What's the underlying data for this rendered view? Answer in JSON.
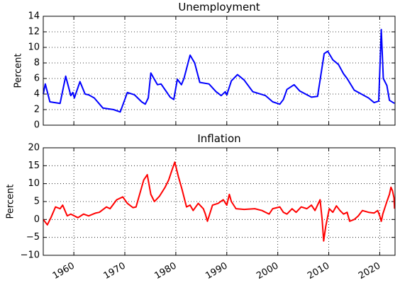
{
  "chart_data": [
    {
      "type": "line",
      "title": "Unemployment",
      "ylabel": "Percent",
      "color": "#0000ff",
      "xlim": [
        1954,
        2023
      ],
      "xticks": [
        1960,
        1970,
        1980,
        1990,
        2000,
        2010,
        2020
      ],
      "ylim": [
        0,
        14
      ],
      "yticks": [
        0,
        2,
        4,
        6,
        8,
        10,
        12,
        14
      ],
      "grid": true,
      "x": [
        1954.0,
        1954.4,
        1955.3,
        1957.3,
        1958.4,
        1959.4,
        1959.8,
        1960.1,
        1961.2,
        1962.2,
        1962.9,
        1964.0,
        1965.7,
        1967.8,
        1969.1,
        1970.5,
        1971.9,
        1973.3,
        1974.0,
        1974.6,
        1975.1,
        1976.4,
        1977.1,
        1978.9,
        1979.6,
        1980.3,
        1981.1,
        1981.6,
        1982.8,
        1983.7,
        1984.7,
        1986.5,
        1987.9,
        1988.9,
        1989.7,
        1990.0,
        1990.9,
        1992.1,
        1993.4,
        1995.1,
        1997.6,
        1999.0,
        2000.4,
        2001.1,
        2001.8,
        2003.2,
        2004.3,
        2006.6,
        2007.8,
        2008.3,
        2009.1,
        2009.8,
        2010.8,
        2011.9,
        2012.9,
        2013.6,
        2015.0,
        2016.4,
        2017.8,
        2018.9,
        2019.8,
        2020.3,
        2020.7,
        2021.4,
        2021.9,
        2022.9
      ],
      "values": [
        4.0,
        5.3,
        3.0,
        2.8,
        6.3,
        3.8,
        4.2,
        3.5,
        5.6,
        4.0,
        3.9,
        3.5,
        2.2,
        2.0,
        1.7,
        4.2,
        3.9,
        3.0,
        2.7,
        3.5,
        6.7,
        5.2,
        5.3,
        3.6,
        3.3,
        5.9,
        5.2,
        6.0,
        9.0,
        8.0,
        5.5,
        5.3,
        4.3,
        3.8,
        4.3,
        3.9,
        5.7,
        6.5,
        5.8,
        4.3,
        3.8,
        3.0,
        2.7,
        3.3,
        4.6,
        5.2,
        4.4,
        3.6,
        3.7,
        5.8,
        9.2,
        9.5,
        8.4,
        7.8,
        6.6,
        6.0,
        4.5,
        4.0,
        3.5,
        2.9,
        3.1,
        12.3,
        6.0,
        5.1,
        3.2,
        2.8
      ]
    },
    {
      "type": "line",
      "title": "Inflation",
      "ylabel": "Percent",
      "color": "#ff0000",
      "xlim": [
        1954,
        2023
      ],
      "xticks": [
        1960,
        1970,
        1980,
        1990,
        2000,
        2010,
        2020
      ],
      "ylim": [
        -10,
        20
      ],
      "yticks": [
        {
          "value": -10,
          "label": "−10"
        },
        {
          "value": -5,
          "label": "−5"
        },
        0,
        5,
        10,
        15,
        20
      ],
      "grid": true,
      "x": [
        1954.0,
        1954.8,
        1955.5,
        1956.4,
        1957.3,
        1957.8,
        1958.7,
        1959.4,
        1960.8,
        1961.9,
        1962.9,
        1964.3,
        1965.0,
        1966.4,
        1967.1,
        1968.4,
        1969.6,
        1970.5,
        1971.6,
        1972.2,
        1972.9,
        1973.7,
        1974.4,
        1975.1,
        1975.8,
        1976.8,
        1977.9,
        1978.6,
        1979.3,
        1979.8,
        1980.5,
        1981.2,
        1982.1,
        1982.8,
        1983.4,
        1984.4,
        1985.4,
        1985.8,
        1986.2,
        1987.2,
        1988.3,
        1989.3,
        1990.0,
        1990.5,
        1990.9,
        1991.8,
        1993.4,
        1995.5,
        1996.9,
        1998.3,
        1999.0,
        2000.4,
        2001.1,
        2001.8,
        2002.8,
        2003.6,
        2004.6,
        2005.7,
        2006.6,
        2007.3,
        2008.3,
        2008.7,
        2009.0,
        2009.4,
        2010.1,
        2010.8,
        2011.5,
        2012.2,
        2012.9,
        2013.6,
        2014.1,
        2015.0,
        2015.8,
        2016.6,
        2017.8,
        2018.9,
        2019.6,
        2020.0,
        2020.3,
        2020.6,
        2021.4,
        2021.9,
        2022.2,
        2022.5,
        2022.8,
        2022.9
      ],
      "values": [
        0,
        -1.5,
        0.5,
        3.5,
        3,
        4,
        1,
        1.5,
        0.5,
        1.5,
        1,
        1.8,
        2,
        3.5,
        3,
        5.5,
        6.3,
        4.5,
        3.3,
        3.5,
        7,
        11,
        12.5,
        7,
        5,
        6.5,
        9,
        11,
        14,
        16,
        12,
        8.5,
        3.5,
        4,
        2.5,
        4.5,
        3,
        1.5,
        -0.5,
        4,
        4.5,
        5.5,
        4,
        7,
        5,
        3,
        2.8,
        3,
        2.5,
        1.5,
        3,
        3.5,
        2,
        1.5,
        3,
        2,
        3.5,
        3,
        4,
        2.5,
        5.5,
        0,
        -6,
        -2,
        3,
        2,
        3.8,
        2.5,
        1.5,
        2,
        -0.5,
        0,
        1,
        2.5,
        2,
        1.8,
        2.5,
        1,
        -0.5,
        1.5,
        5,
        7,
        9,
        8,
        6,
        3
      ]
    }
  ]
}
